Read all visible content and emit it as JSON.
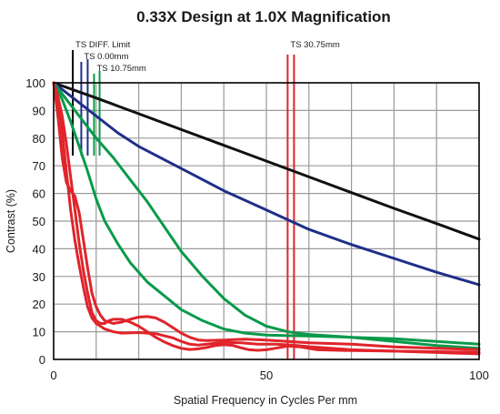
{
  "chart_data": {
    "type": "line",
    "title": "0.33X Design at 1.0X Magnification",
    "xlabel": "Spatial Frequency in Cycles Per mm",
    "ylabel": "Contrast (%)",
    "xlim": [
      0,
      100
    ],
    "ylim": [
      0,
      100
    ],
    "x_ticks": [
      "0",
      "50",
      "100"
    ],
    "y_ticks": [
      "0",
      "10",
      "20",
      "30",
      "40",
      "50",
      "60",
      "70",
      "80",
      "90",
      "100"
    ],
    "grid": true,
    "markers": [
      {
        "label": "TS DIFF. Limit",
        "color": "#000000",
        "lines": [
          4.5
        ]
      },
      {
        "label": "TS 0.00mm",
        "color": "#1f2f8a",
        "lines": [
          6.5,
          8.0
        ]
      },
      {
        "label": "TS 10.75mm",
        "color": "#0a9a4a",
        "lines": [
          9.5,
          10.8
        ]
      },
      {
        "label": "TS 30.75mm",
        "color": "#e0242b",
        "lines": [
          55.0,
          56.5
        ]
      }
    ],
    "series": [
      {
        "color": "#111111",
        "points": [
          [
            0,
            100
          ],
          [
            10,
            94.5
          ],
          [
            20,
            88.8
          ],
          [
            30,
            83.1
          ],
          [
            40,
            77.4
          ],
          [
            50,
            71.7
          ],
          [
            60,
            66.0
          ],
          [
            70,
            60.3
          ],
          [
            80,
            54.6
          ],
          [
            90,
            49.1
          ],
          [
            100,
            43.5
          ]
        ]
      },
      {
        "color": "#1f2f8a",
        "points": [
          [
            0,
            100
          ],
          [
            5,
            94
          ],
          [
            10,
            88
          ],
          [
            15,
            82
          ],
          [
            20,
            77
          ],
          [
            25,
            73
          ],
          [
            30,
            69
          ],
          [
            40,
            61
          ],
          [
            50,
            54
          ],
          [
            60,
            47
          ],
          [
            70,
            41.5
          ],
          [
            80,
            36.5
          ],
          [
            90,
            31.5
          ],
          [
            100,
            27
          ]
        ]
      },
      {
        "color": "#0a9a4a",
        "points": [
          [
            0,
            100
          ],
          [
            3,
            94
          ],
          [
            6,
            88
          ],
          [
            10,
            80
          ],
          [
            14,
            73
          ],
          [
            18,
            65
          ],
          [
            22,
            57
          ],
          [
            26,
            48
          ],
          [
            30,
            39
          ],
          [
            35,
            30
          ],
          [
            40,
            22
          ],
          [
            45,
            16
          ],
          [
            50,
            12
          ],
          [
            55,
            10
          ],
          [
            60,
            9
          ],
          [
            70,
            8
          ],
          [
            80,
            7.5
          ],
          [
            90,
            6.5
          ],
          [
            100,
            5.5
          ]
        ]
      },
      {
        "color": "#0a9a4a",
        "points": [
          [
            0,
            100
          ],
          [
            2,
            94
          ],
          [
            4,
            86
          ],
          [
            6,
            77
          ],
          [
            8,
            68
          ],
          [
            10,
            58
          ],
          [
            12,
            50
          ],
          [
            15,
            42
          ],
          [
            18,
            35
          ],
          [
            22,
            28
          ],
          [
            26,
            23
          ],
          [
            30,
            18
          ],
          [
            35,
            14
          ],
          [
            40,
            11
          ],
          [
            45,
            9.5
          ],
          [
            50,
            8.8
          ],
          [
            55,
            8.6
          ],
          [
            60,
            8.5
          ],
          [
            70,
            8
          ],
          [
            80,
            6.5
          ],
          [
            90,
            5
          ],
          [
            100,
            4
          ]
        ]
      },
      {
        "color": "#e0242b",
        "points": [
          [
            0,
            100
          ],
          [
            1,
            88
          ],
          [
            2,
            73
          ],
          [
            3,
            64
          ],
          [
            4,
            61
          ],
          [
            5,
            59
          ],
          [
            6,
            53
          ],
          [
            7,
            43
          ],
          [
            8,
            33
          ],
          [
            9,
            24
          ],
          [
            10,
            19
          ],
          [
            11,
            16
          ],
          [
            12,
            14
          ],
          [
            14,
            13
          ],
          [
            16,
            13.5
          ],
          [
            18,
            14.5
          ],
          [
            20,
            15.3
          ],
          [
            22,
            15.5
          ],
          [
            24,
            15
          ],
          [
            26,
            13.5
          ],
          [
            28,
            11.5
          ],
          [
            30,
            9.5
          ],
          [
            32,
            8
          ],
          [
            34,
            7
          ],
          [
            36,
            6.8
          ],
          [
            40,
            7
          ],
          [
            45,
            7.3
          ],
          [
            50,
            7
          ],
          [
            55,
            6.5
          ],
          [
            60,
            6
          ],
          [
            70,
            5.5
          ],
          [
            80,
            4.5
          ],
          [
            90,
            4
          ],
          [
            100,
            3.5
          ]
        ]
      },
      {
        "color": "#e0242b",
        "points": [
          [
            0,
            100
          ],
          [
            1,
            92
          ],
          [
            2,
            82
          ],
          [
            3,
            68
          ],
          [
            4,
            54
          ],
          [
            5,
            43
          ],
          [
            6,
            34
          ],
          [
            7,
            26
          ],
          [
            8,
            19
          ],
          [
            9,
            15
          ],
          [
            10,
            13
          ],
          [
            11,
            12
          ],
          [
            12,
            11
          ],
          [
            14,
            10
          ],
          [
            16,
            9.5
          ],
          [
            20,
            9.7
          ],
          [
            24,
            9.3
          ],
          [
            28,
            7.8
          ],
          [
            30,
            6.5
          ],
          [
            32,
            5.5
          ],
          [
            34,
            5.2
          ],
          [
            36,
            5.5
          ],
          [
            40,
            6.2
          ],
          [
            44,
            6
          ],
          [
            48,
            5.5
          ],
          [
            52,
            5.5
          ],
          [
            56,
            5.2
          ],
          [
            60,
            4.6
          ],
          [
            70,
            3.5
          ],
          [
            80,
            3
          ],
          [
            90,
            2.5
          ],
          [
            100,
            2
          ]
        ]
      },
      {
        "color": "#e0242b",
        "points": [
          [
            0,
            100
          ],
          [
            1,
            95
          ],
          [
            2,
            88
          ],
          [
            3,
            78
          ],
          [
            4,
            66
          ],
          [
            5,
            54
          ],
          [
            6,
            42
          ],
          [
            7,
            32
          ],
          [
            8,
            24
          ],
          [
            9,
            17
          ],
          [
            10,
            14
          ],
          [
            11,
            13
          ],
          [
            12,
            13
          ],
          [
            13,
            14
          ],
          [
            14,
            14.5
          ],
          [
            16,
            14.5
          ],
          [
            18,
            13.5
          ],
          [
            20,
            12
          ],
          [
            22,
            10
          ],
          [
            24,
            8
          ],
          [
            26,
            6.3
          ],
          [
            28,
            5
          ],
          [
            30,
            4
          ],
          [
            32,
            3.6
          ],
          [
            34,
            3.8
          ],
          [
            36,
            4.3
          ],
          [
            38,
            5
          ],
          [
            40,
            5.3
          ],
          [
            42,
            5.1
          ],
          [
            44,
            4.2
          ],
          [
            46,
            3.5
          ],
          [
            48,
            3.3
          ],
          [
            50,
            3.5
          ],
          [
            52,
            4
          ],
          [
            55,
            4.8
          ],
          [
            58,
            4.5
          ],
          [
            62,
            3.5
          ],
          [
            70,
            3.2
          ],
          [
            80,
            3
          ],
          [
            90,
            2.8
          ],
          [
            100,
            2.5
          ]
        ]
      }
    ]
  }
}
